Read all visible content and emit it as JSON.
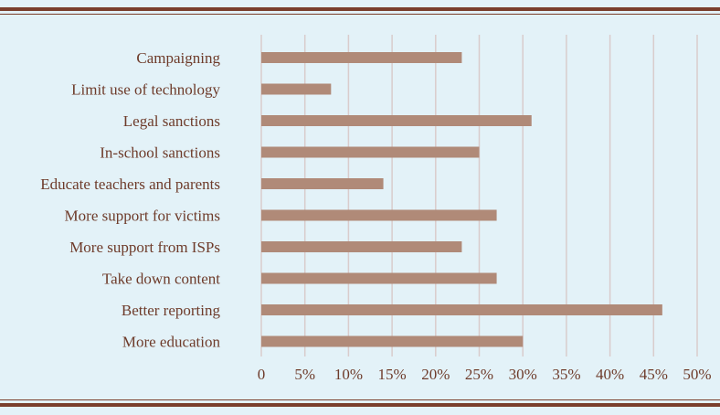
{
  "colors": {
    "background": "#e3f2f8",
    "bar": "#b08a78",
    "gridline": "#d9cccc",
    "text": "#6e3b2a",
    "rule": "#7a3f2c"
  },
  "chart_data": {
    "type": "bar",
    "orientation": "horizontal",
    "categories": [
      "Campaigning",
      "Limit use of technology",
      "Legal sanctions",
      "In-school sanctions",
      "Educate teachers and parents",
      "More support for victims",
      "More support from ISPs",
      "Take down content",
      "Better reporting",
      "More education"
    ],
    "values": [
      23,
      8,
      31,
      25,
      14,
      27,
      23,
      27,
      46,
      30
    ],
    "xlim": [
      0,
      50
    ],
    "x_ticks": [
      "0",
      "5%",
      "10%",
      "15%",
      "20%",
      "25%",
      "30%",
      "35%",
      "40%",
      "45%",
      "50%"
    ],
    "grid": "vertical",
    "title": "",
    "xlabel": "",
    "ylabel": ""
  }
}
